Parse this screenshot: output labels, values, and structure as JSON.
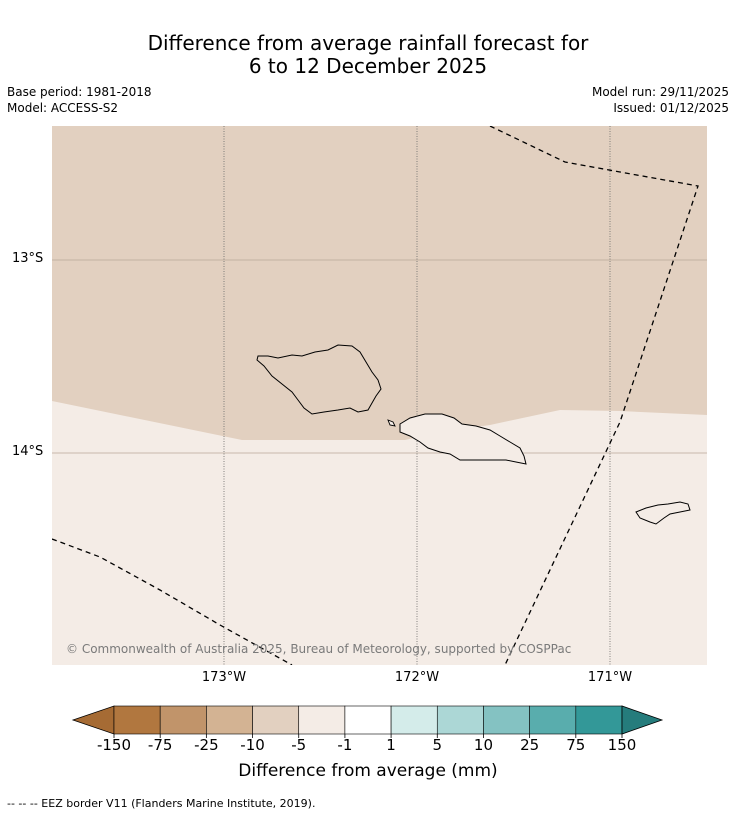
{
  "title": {
    "line1": "Difference from average rainfall forecast for",
    "line2": "6 to 12 December 2025"
  },
  "meta": {
    "base_period": "Base period: 1981-2018",
    "model": "Model: ACCESS-S2",
    "model_run": "Model run: 29/11/2025",
    "issued": "Issued: 01/12/2025"
  },
  "map": {
    "lat_labels": [
      "13°S",
      "14°S"
    ],
    "lon_labels": [
      "173°W",
      "172°W",
      "171°W"
    ],
    "copyright": "© Commonwealth of Australia 2025, Bureau of Meteorology, supported by COSPPac",
    "fill_colors": {
      "dry": "#e2d0c0",
      "near_normal": "#f4ece6"
    }
  },
  "colorbar": {
    "title": "Difference from average (mm)",
    "ticks": [
      "-150",
      "-75",
      "-25",
      "-10",
      "-5",
      "-1",
      "1",
      "5",
      "10",
      "25",
      "75",
      "150"
    ],
    "colors": [
      "#a66b34",
      "#b1773f",
      "#c1946a",
      "#d3b393",
      "#e2d0c0",
      "#f4ece6",
      "#ffffff",
      "#d4ecea",
      "#acd7d6",
      "#84c2c2",
      "#59adad",
      "#339898",
      "#257c7c"
    ]
  },
  "footnote": "--  --  -- EEZ border V11 (Flanders Marine Institute, 2019)."
}
